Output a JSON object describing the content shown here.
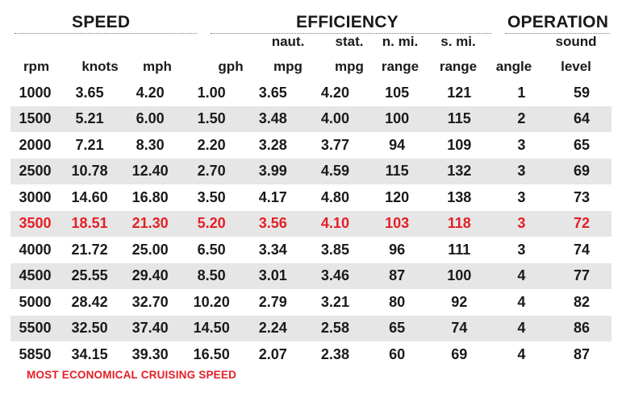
{
  "groups": {
    "speed": "SPEED",
    "efficiency": "EFFICIENCY",
    "operation": "OPERATION"
  },
  "headers": [
    {
      "top": "",
      "bottom": "rpm"
    },
    {
      "top": "",
      "bottom": "knots"
    },
    {
      "top": "",
      "bottom": "mph"
    },
    {
      "top": "",
      "bottom": "gph"
    },
    {
      "top": "naut.",
      "bottom": "mpg"
    },
    {
      "top": "stat.",
      "bottom": "mpg"
    },
    {
      "top": "n. mi.",
      "bottom": "range"
    },
    {
      "top": "s. mi.",
      "bottom": "range"
    },
    {
      "top": "",
      "bottom": "angle"
    },
    {
      "top": "sound",
      "bottom": "level"
    }
  ],
  "rows": [
    [
      "1000",
      "3.65",
      "4.20",
      "1.00",
      "3.65",
      "4.20",
      "105",
      "121",
      "1",
      "59"
    ],
    [
      "1500",
      "5.21",
      "6.00",
      "1.50",
      "3.48",
      "4.00",
      "100",
      "115",
      "2",
      "64"
    ],
    [
      "2000",
      "7.21",
      "8.30",
      "2.20",
      "3.28",
      "3.77",
      "94",
      "109",
      "3",
      "65"
    ],
    [
      "2500",
      "10.78",
      "12.40",
      "2.70",
      "3.99",
      "4.59",
      "115",
      "132",
      "3",
      "69"
    ],
    [
      "3000",
      "14.60",
      "16.80",
      "3.50",
      "4.17",
      "4.80",
      "120",
      "138",
      "3",
      "73"
    ],
    [
      "3500",
      "18.51",
      "21.30",
      "5.20",
      "3.56",
      "4.10",
      "103",
      "118",
      "3",
      "72"
    ],
    [
      "4000",
      "21.72",
      "25.00",
      "6.50",
      "3.34",
      "3.85",
      "96",
      "111",
      "3",
      "74"
    ],
    [
      "4500",
      "25.55",
      "29.40",
      "8.50",
      "3.01",
      "3.46",
      "87",
      "100",
      "4",
      "77"
    ],
    [
      "5000",
      "28.42",
      "32.70",
      "10.20",
      "2.79",
      "3.21",
      "80",
      "92",
      "4",
      "82"
    ],
    [
      "5500",
      "32.50",
      "37.40",
      "14.50",
      "2.24",
      "2.58",
      "65",
      "74",
      "4",
      "86"
    ],
    [
      "5850",
      "34.15",
      "39.30",
      "16.50",
      "2.07",
      "2.38",
      "60",
      "69",
      "4",
      "87"
    ]
  ],
  "highlight_row_index": 5,
  "footnote": "MOST ECONOMICAL CRUISING SPEED",
  "colors": {
    "highlight": "#e41f26",
    "stripe": "#e6e6e6",
    "text": "#1a1a1a"
  }
}
